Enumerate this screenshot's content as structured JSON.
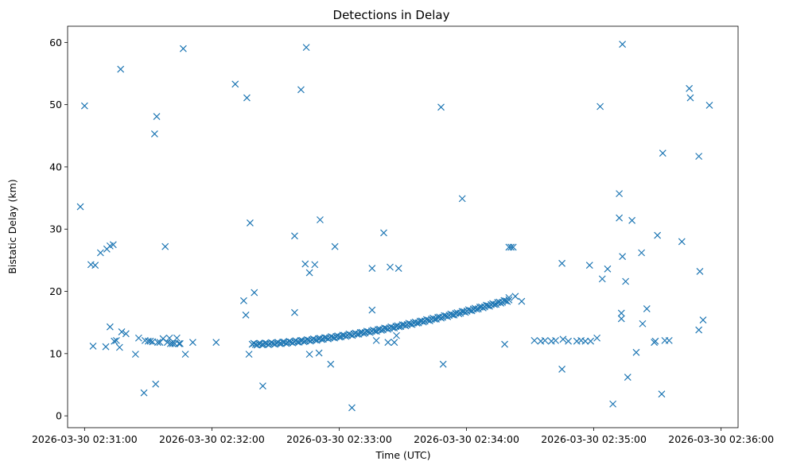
{
  "chart_data": {
    "type": "scatter",
    "title": "Detections in Delay",
    "xlabel": "Time (UTC)",
    "ylabel": "Bistatic Delay (km)",
    "marker": "x",
    "color": "#1f77b4",
    "xlim": [
      -8,
      308
    ],
    "ylim": [
      -1.9,
      62.6
    ],
    "x_unit": "seconds after 2026-03-30 02:31:00",
    "xticks": [
      {
        "value": 0,
        "label": "2026-03-30 02:31:00"
      },
      {
        "value": 60,
        "label": "2026-03-30 02:32:00"
      },
      {
        "value": 120,
        "label": "2026-03-30 02:33:00"
      },
      {
        "value": 180,
        "label": "2026-03-30 02:34:00"
      },
      {
        "value": 240,
        "label": "2026-03-30 02:35:00"
      },
      {
        "value": 300,
        "label": "2026-03-30 02:36:00"
      }
    ],
    "yticks": [
      0,
      10,
      20,
      30,
      40,
      50,
      60
    ],
    "scatter_points": [
      [
        -2,
        33.6
      ],
      [
        0,
        49.8
      ],
      [
        3,
        24.3
      ],
      [
        4,
        11.2
      ],
      [
        5,
        24.2
      ],
      [
        7.5,
        26.2
      ],
      [
        10,
        11.1
      ],
      [
        10.5,
        26.8
      ],
      [
        12,
        27.3
      ],
      [
        12,
        14.3
      ],
      [
        13.5,
        27.5
      ],
      [
        14,
        12
      ],
      [
        15,
        12.1
      ],
      [
        16.5,
        11
      ],
      [
        17,
        55.7
      ],
      [
        17.5,
        13.5
      ],
      [
        19.5,
        13.2
      ],
      [
        24,
        9.9
      ],
      [
        25.5,
        12.5
      ],
      [
        28,
        3.7
      ],
      [
        28.5,
        12.1
      ],
      [
        30,
        12
      ],
      [
        31,
        12
      ],
      [
        32,
        11.9
      ],
      [
        33,
        45.3
      ],
      [
        33.5,
        5.1
      ],
      [
        34,
        48.1
      ],
      [
        34.5,
        11.8
      ],
      [
        35.5,
        11.8
      ],
      [
        37,
        12.4
      ],
      [
        38,
        27.2
      ],
      [
        39,
        11.8
      ],
      [
        40,
        12.5
      ],
      [
        40.5,
        11.6
      ],
      [
        41.5,
        11.6
      ],
      [
        42.5,
        11.6
      ],
      [
        43.5,
        12.5
      ],
      [
        44.5,
        11.6
      ],
      [
        45,
        11.6
      ],
      [
        46.5,
        59
      ],
      [
        47.5,
        9.9
      ],
      [
        51,
        11.8
      ],
      [
        62,
        11.8
      ],
      [
        71,
        53.3
      ],
      [
        75,
        18.5
      ],
      [
        76,
        16.2
      ],
      [
        76.5,
        51.1
      ],
      [
        77.5,
        9.9
      ],
      [
        78,
        31
      ],
      [
        80,
        19.8
      ],
      [
        84,
        4.8
      ],
      [
        99,
        28.9
      ],
      [
        99,
        16.6
      ],
      [
        102,
        52.4
      ],
      [
        104.5,
        59.2
      ],
      [
        104,
        24.4
      ],
      [
        106,
        23
      ],
      [
        106,
        9.9
      ],
      [
        108.5,
        24.3
      ],
      [
        110.5,
        10.1
      ],
      [
        111,
        31.5
      ],
      [
        116,
        8.3
      ],
      [
        118,
        27.2
      ],
      [
        126,
        1.3
      ],
      [
        135.5,
        17
      ],
      [
        135.5,
        23.7
      ],
      [
        137.5,
        12.1
      ],
      [
        141,
        29.4
      ],
      [
        143,
        11.8
      ],
      [
        144,
        23.9
      ],
      [
        146,
        11.8
      ],
      [
        147,
        12.9
      ],
      [
        148,
        23.7
      ],
      [
        168,
        49.6
      ],
      [
        169,
        8.3
      ],
      [
        178,
        34.9
      ],
      [
        198,
        11.5
      ],
      [
        200,
        27.1
      ],
      [
        201,
        27.1
      ],
      [
        202,
        27.1
      ],
      [
        200,
        19
      ],
      [
        203,
        19.2
      ],
      [
        206,
        18.4
      ],
      [
        225,
        7.5
      ],
      [
        225,
        24.5
      ],
      [
        238,
        24.2
      ],
      [
        241.5,
        12.5
      ],
      [
        243,
        49.7
      ],
      [
        244,
        22
      ],
      [
        246.5,
        23.6
      ],
      [
        249,
        1.9
      ],
      [
        252,
        31.8
      ],
      [
        252,
        35.7
      ],
      [
        253,
        16.5
      ],
      [
        253,
        15.6
      ],
      [
        253.5,
        25.6
      ],
      [
        253.5,
        59.7
      ],
      [
        255,
        21.6
      ],
      [
        256,
        6.2
      ],
      [
        258,
        31.4
      ],
      [
        260,
        10.2
      ],
      [
        262.5,
        26.2
      ],
      [
        263,
        14.8
      ],
      [
        265,
        17.2
      ],
      [
        268.5,
        11.8
      ],
      [
        269,
        12
      ],
      [
        270,
        29
      ],
      [
        272,
        3.5
      ],
      [
        272.5,
        42.2
      ],
      [
        273.5,
        12.1
      ],
      [
        275.5,
        12.1
      ],
      [
        281.5,
        28
      ],
      [
        285,
        52.6
      ],
      [
        285.5,
        51.1
      ],
      [
        289.5,
        41.7
      ],
      [
        289.5,
        13.8
      ],
      [
        290,
        23.2
      ],
      [
        291.5,
        15.4
      ],
      [
        294.5,
        49.9
      ],
      [
        212,
        12.1
      ],
      [
        215,
        12
      ],
      [
        217,
        12.1
      ],
      [
        220,
        12
      ],
      [
        222,
        12.1
      ],
      [
        225.5,
        12.3
      ],
      [
        228,
        12
      ],
      [
        232,
        12
      ],
      [
        234,
        12.1
      ],
      [
        236,
        12
      ],
      [
        238.5,
        12
      ]
    ],
    "track": {
      "description": "dense track of detections",
      "x_start": 79,
      "x_end": 200,
      "y_start": 11.5,
      "y_end": 18.6,
      "count": 160
    }
  }
}
